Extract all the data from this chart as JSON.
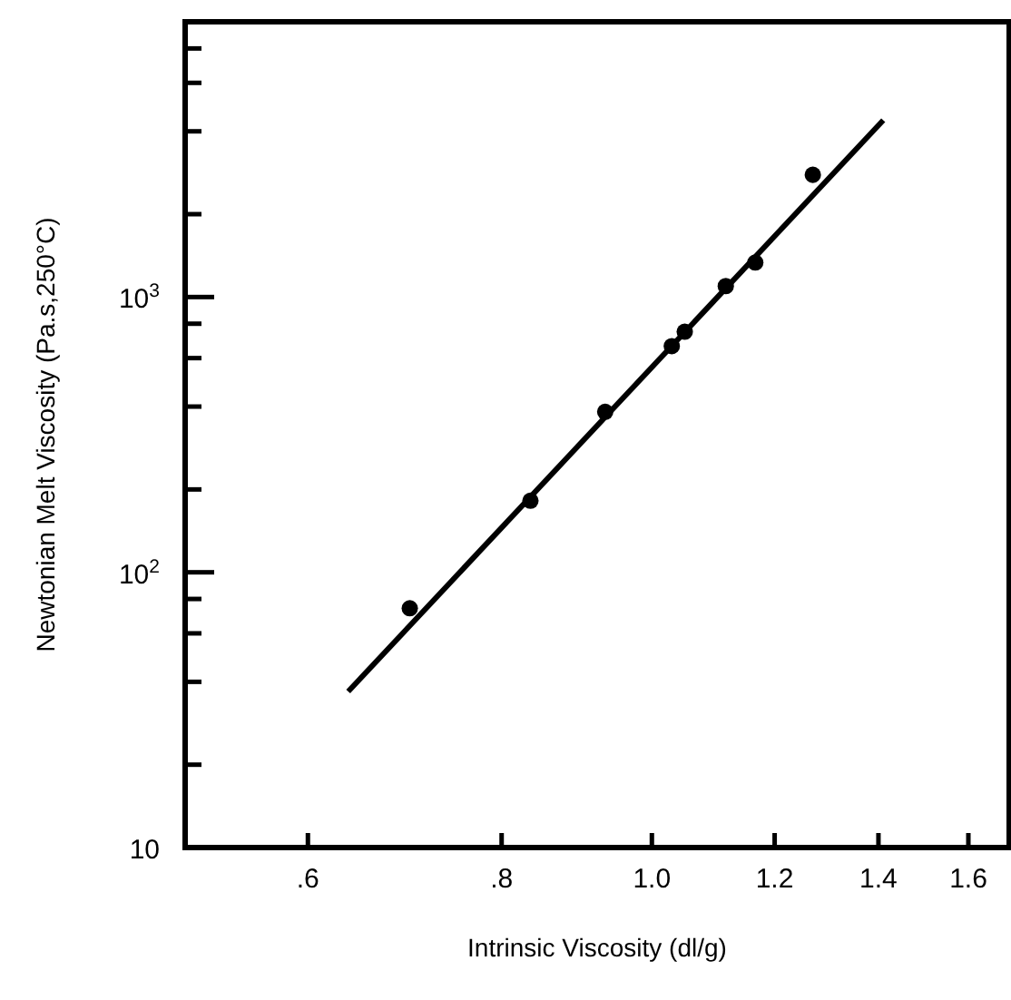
{
  "chart_data": {
    "type": "scatter",
    "xlabel": "Intrinsic Viscosity (dl/g)",
    "ylabel": "Newtonian Melt Viscosity (Pa.s,250°C)",
    "log": "xy",
    "grid": false,
    "marker": "circle",
    "xlim": [
      0.5,
      1.7
    ],
    "ylim": [
      10,
      10000
    ],
    "xticks": [
      {
        "value": 0.6,
        "label": ".6"
      },
      {
        "value": 0.8,
        "label": ".8"
      },
      {
        "value": 1.0,
        "label": "1.0"
      },
      {
        "value": 1.2,
        "label": "1.2"
      },
      {
        "value": 1.4,
        "label": "1.4"
      },
      {
        "value": 1.6,
        "label": "1.6"
      }
    ],
    "yticks": [
      10,
      {
        "value": 20,
        "label": null
      },
      {
        "value": 40,
        "label": null
      },
      {
        "value": 60,
        "label": null
      },
      {
        "value": 80,
        "label": null
      },
      {
        "value": 100,
        "label": "10$^{2}$"
      },
      {
        "value": 200,
        "label": null
      },
      {
        "value": 400,
        "label": null
      },
      {
        "value": 600,
        "label": null
      },
      {
        "value": 800,
        "label": null
      },
      {
        "value": 1000,
        "label": "10$^{3}$"
      },
      {
        "value": 2000,
        "label": null
      },
      {
        "value": 4000,
        "label": null
      },
      {
        "value": 6000,
        "label": null
      },
      {
        "value": 8000,
        "label": null
      }
    ],
    "series": [
      {
        "color": "#000000",
        "x": [
          0.698,
          0.835,
          0.933,
          1.03,
          1.05,
          1.116,
          1.166,
          1.27
        ],
        "values": [
          74,
          182,
          383,
          663,
          748,
          1096,
          1335,
          2780
        ]
      },
      {
        "type": "line",
        "color": "#000000",
        "marker": "none",
        "line_style": "solid",
        "x": [
          0.637,
          1.41
        ],
        "values": [
          36.9,
          4390
        ]
      }
    ]
  }
}
